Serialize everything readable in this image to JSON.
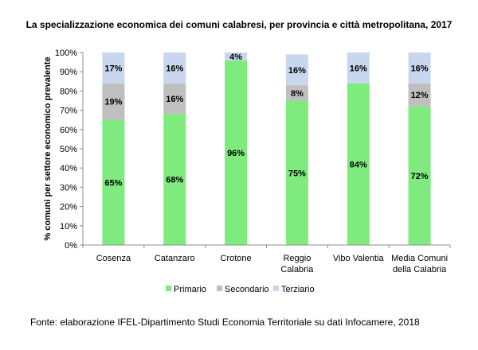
{
  "chart_data": {
    "type": "bar",
    "stacked": true,
    "title": "La specializzazione  economica dei comuni calabresi,  per provincia e città metropolitana, 2017",
    "ylabel": "% comuni per settore economico prevalente",
    "xlabel": "",
    "ylim": [
      0,
      100
    ],
    "yticks": [
      "0%",
      "10%",
      "20%",
      "30%",
      "40%",
      "50%",
      "60%",
      "70%",
      "80%",
      "90%",
      "100%"
    ],
    "categories": [
      [
        "Cosenza"
      ],
      [
        "Catanzaro"
      ],
      [
        "Crotone"
      ],
      [
        "Reggio",
        "Calabria"
      ],
      [
        "Vibo Valentia"
      ],
      [
        "Media Comuni",
        "della Calabria"
      ]
    ],
    "series": [
      {
        "name": "Primario",
        "color": "#7FEB7F",
        "values": [
          65,
          68,
          96,
          75,
          84,
          72
        ],
        "labels": [
          "65%",
          "68%",
          "96%",
          "75%",
          "84%",
          "72%"
        ]
      },
      {
        "name": "Secondario",
        "color": "#BFBFBF",
        "values": [
          19,
          16,
          0,
          8,
          0,
          12
        ],
        "labels": [
          "19%",
          "16%",
          "",
          "8%",
          "",
          "12%"
        ]
      },
      {
        "name": "Terziario",
        "color": "#C9D7EE",
        "values": [
          17,
          16,
          4,
          16,
          16,
          16
        ],
        "labels": [
          "17%",
          "16%",
          "4%",
          "16%",
          "16%",
          "16%"
        ]
      }
    ],
    "legend_position": "bottom",
    "grid": false
  },
  "source": "Fonte: elaborazione IFEL-Dipartimento Studi Economia Territoriale su dati Infocamere, 2018"
}
